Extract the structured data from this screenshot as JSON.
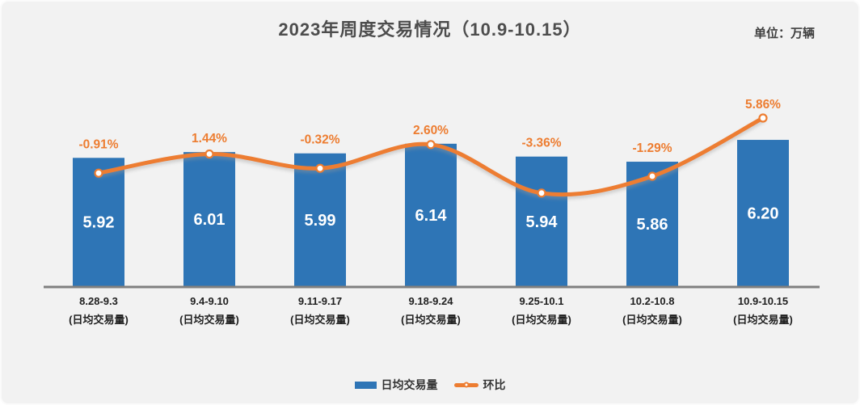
{
  "chart_data": {
    "type": "combo-bar-line",
    "title": "2023年周度交易情况（10.9-10.15）",
    "unit_label": "单位：万辆",
    "categories": [
      "8.28-9.3",
      "9.4-9.10",
      "9.11-9.17",
      "9.18-9.24",
      "9.25-10.1",
      "10.2-10.8",
      "10.9-10.15"
    ],
    "category_sublabel": "(日均交易量)",
    "series": [
      {
        "name": "日均交易量",
        "type": "bar",
        "values": [
          5.92,
          6.01,
          5.99,
          6.14,
          5.94,
          5.86,
          6.2
        ],
        "labels": [
          "5.92",
          "6.01",
          "5.99",
          "6.14",
          "5.94",
          "5.86",
          "6.20"
        ],
        "color": "#2E75B6",
        "label_color": "#FFFFFF"
      },
      {
        "name": "环比",
        "type": "line",
        "values": [
          -0.91,
          1.44,
          -0.32,
          2.6,
          -3.36,
          -1.29,
          5.86
        ],
        "labels": [
          "-0.91%",
          "1.44%",
          "-0.32%",
          "2.60%",
          "-3.36%",
          "-1.29%",
          "5.86%"
        ],
        "color": "#ED7D31",
        "marker": "circle-white-fill"
      }
    ],
    "legend_position": "bottom",
    "grid": false,
    "y_axis_visible": false,
    "x_axis_line_color": "#808080",
    "x_label_color": "#1F1F1F",
    "background_color": "#F2F2F2"
  }
}
